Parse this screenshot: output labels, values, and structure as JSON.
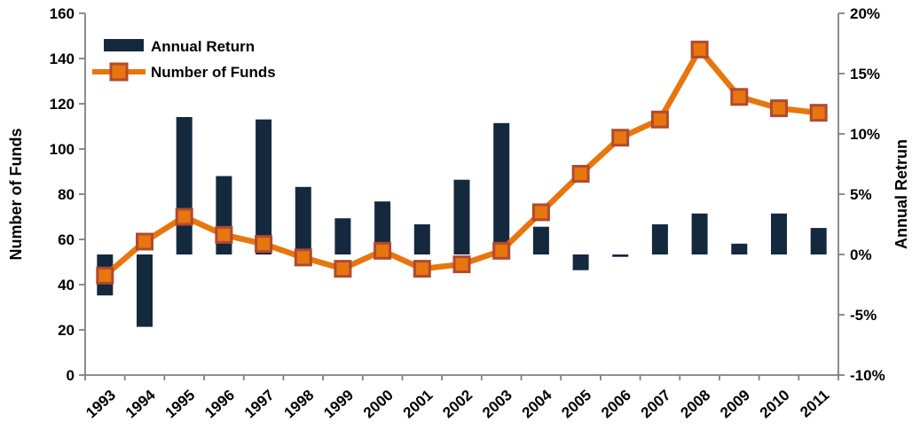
{
  "chart_data": {
    "type": "bar",
    "subtype": "combo-bar-line-dual-axis",
    "categories": [
      "1993",
      "1994",
      "1995",
      "1996",
      "1997",
      "1998",
      "1999",
      "2000",
      "2001",
      "2002",
      "2003",
      "2004",
      "2005",
      "2006",
      "2007",
      "2008",
      "2009",
      "2010",
      "2011"
    ],
    "series": [
      {
        "name": "Annual Return",
        "type": "bar",
        "axis": "right",
        "unit": "%",
        "values": [
          -3.4,
          -6.0,
          11.4,
          6.5,
          11.2,
          5.6,
          3.0,
          4.4,
          2.5,
          6.2,
          10.9,
          2.3,
          -1.3,
          -0.2,
          2.5,
          3.4,
          0.9,
          3.4,
          2.2
        ]
      },
      {
        "name": "Number of Funds",
        "type": "line",
        "axis": "left",
        "unit": "funds",
        "values": [
          44,
          59,
          70,
          62,
          58,
          52,
          47,
          55,
          47,
          49,
          55,
          72,
          89,
          105,
          113,
          144,
          123,
          118,
          116
        ]
      }
    ],
    "left_axis": {
      "title": "Number of Funds",
      "min": 0,
      "max": 160,
      "step": 20,
      "tick_labels": [
        "0",
        "20",
        "40",
        "60",
        "80",
        "100",
        "120",
        "140",
        "160"
      ]
    },
    "right_axis": {
      "title": "Annual Retrun",
      "min": -10,
      "max": 20,
      "step": 5,
      "tick_labels": [
        "-10%",
        "-5%",
        "0%",
        "5%",
        "10%",
        "15%",
        "20%"
      ]
    },
    "legend": [
      "Annual Return",
      "Number of Funds"
    ],
    "legend_position": "top-left-inside",
    "grid": false,
    "baseline_percent": 0,
    "colors": {
      "bar": "#15293E",
      "line": "#E8760E",
      "marker_fill": "#E8760E",
      "marker_border": "#B04A30",
      "axis": "#808080",
      "text": "#000000",
      "background": "#FFFFFF"
    }
  }
}
